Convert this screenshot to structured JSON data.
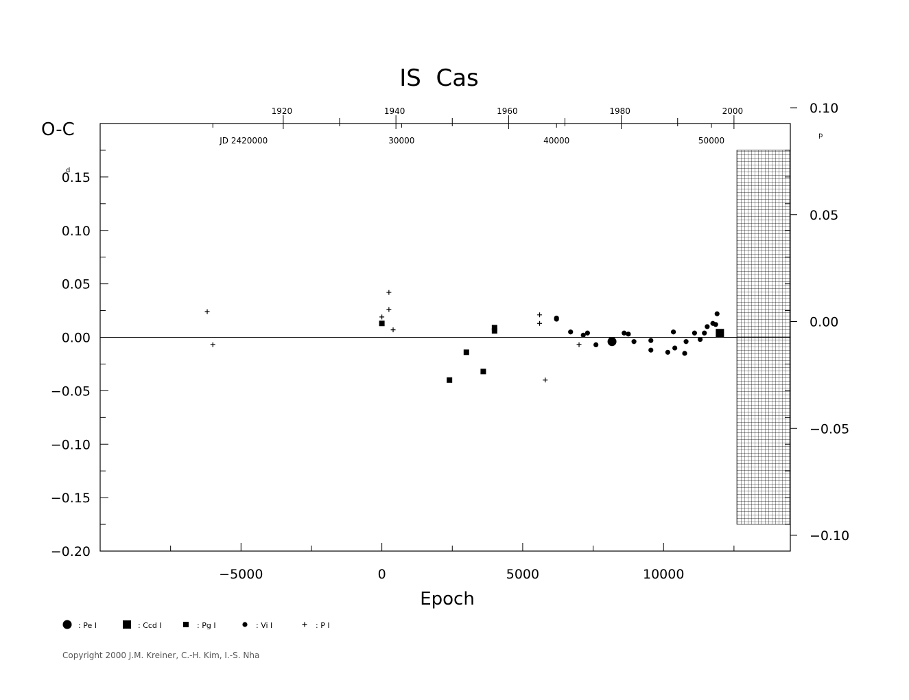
{
  "chart_data": {
    "type": "scatter",
    "title": "IS  Cas",
    "xlabel": "Epoch",
    "ylabel": "O-C",
    "y_unit_left": "d",
    "y_unit_right": "p",
    "xlim": [
      -10000,
      14500
    ],
    "ylim": [
      -0.2,
      0.2
    ],
    "ylim_right": [
      -0.1,
      0.1
    ],
    "x_ticks": [
      -5000,
      0,
      5000,
      10000
    ],
    "x_tick_labels": [
      "−5000",
      "0",
      "5000",
      "10000"
    ],
    "y_ticks": [
      0.15,
      0.1,
      0.05,
      0.0,
      -0.05,
      -0.1,
      -0.15,
      -0.2
    ],
    "y_tick_labels": [
      "0.15",
      "0.10",
      "0.05",
      "0.00",
      "−0.05",
      "−0.10",
      "−0.15",
      "−0.20"
    ],
    "y_right_ticks": [
      0.1,
      0.05,
      0.0,
      -0.05,
      -0.1
    ],
    "y_right_tick_labels": [
      "0.10",
      "0.05",
      "0.00",
      "−0.05",
      "−0.10"
    ],
    "top_year_labels": [
      "1920",
      "1940",
      "1960",
      "1980",
      "2000"
    ],
    "top_year_epochs": [
      -3500,
      500,
      4500,
      8500,
      12500
    ],
    "top_jd_labels": [
      "JD  2420000",
      "30000",
      "40000",
      "50000"
    ],
    "top_jd_epochs": [
      -6000,
      700,
      6200,
      11700
    ],
    "hatched_region_x": [
      12600,
      14500
    ],
    "hatched_region_y": [
      -0.175,
      0.175
    ],
    "legend": [
      {
        "symbol": "big-circle",
        "label": ": Pe  I"
      },
      {
        "symbol": "big-square",
        "label": ": Ccd  I"
      },
      {
        "symbol": "small-square",
        "label": ": Pg  I"
      },
      {
        "symbol": "small-circle",
        "label": ": Vi  I"
      },
      {
        "symbol": "plus",
        "label": ": P  I"
      }
    ],
    "series": [
      {
        "name": "Pe I",
        "symbol": "big-circle",
        "points": [
          [
            8170,
            -0.004
          ]
        ]
      },
      {
        "name": "Ccd I",
        "symbol": "big-square",
        "points": [
          [
            12000,
            0.004
          ]
        ]
      },
      {
        "name": "Pg I",
        "symbol": "small-square",
        "points": [
          [
            0,
            0.013
          ],
          [
            2400,
            -0.04
          ],
          [
            3000,
            -0.014
          ],
          [
            3600,
            -0.032
          ],
          [
            4000,
            0.006
          ],
          [
            4000,
            0.009
          ]
        ]
      },
      {
        "name": "Vi I",
        "symbol": "small-circle",
        "points": [
          [
            6200,
            0.018
          ],
          [
            6200,
            0.017
          ],
          [
            6700,
            0.005
          ],
          [
            7150,
            0.002
          ],
          [
            7300,
            0.004
          ],
          [
            7600,
            -0.007
          ],
          [
            8600,
            0.004
          ],
          [
            8750,
            0.003
          ],
          [
            8950,
            -0.004
          ],
          [
            9550,
            -0.003
          ],
          [
            9550,
            -0.012
          ],
          [
            10150,
            -0.014
          ],
          [
            10350,
            0.005
          ],
          [
            10400,
            -0.01
          ],
          [
            10750,
            -0.015
          ],
          [
            10800,
            -0.004
          ],
          [
            11100,
            0.004
          ],
          [
            11300,
            -0.002
          ],
          [
            11450,
            0.004
          ],
          [
            11550,
            0.01
          ],
          [
            11750,
            0.013
          ],
          [
            11850,
            0.012
          ],
          [
            11900,
            0.022
          ]
        ]
      },
      {
        "name": "P I",
        "symbol": "plus",
        "points": [
          [
            -6200,
            0.024
          ],
          [
            -6000,
            -0.007
          ],
          [
            0,
            0.019
          ],
          [
            250,
            0.042
          ],
          [
            250,
            0.026
          ],
          [
            400,
            0.007
          ],
          [
            5600,
            0.021
          ],
          [
            5600,
            0.013
          ],
          [
            5800,
            -0.04
          ],
          [
            7000,
            -0.007
          ]
        ]
      }
    ]
  },
  "footer": {
    "copyright": "Copyright 2000 J.M. Kreiner, C.-H. Kim, I.-S. Nha"
  }
}
